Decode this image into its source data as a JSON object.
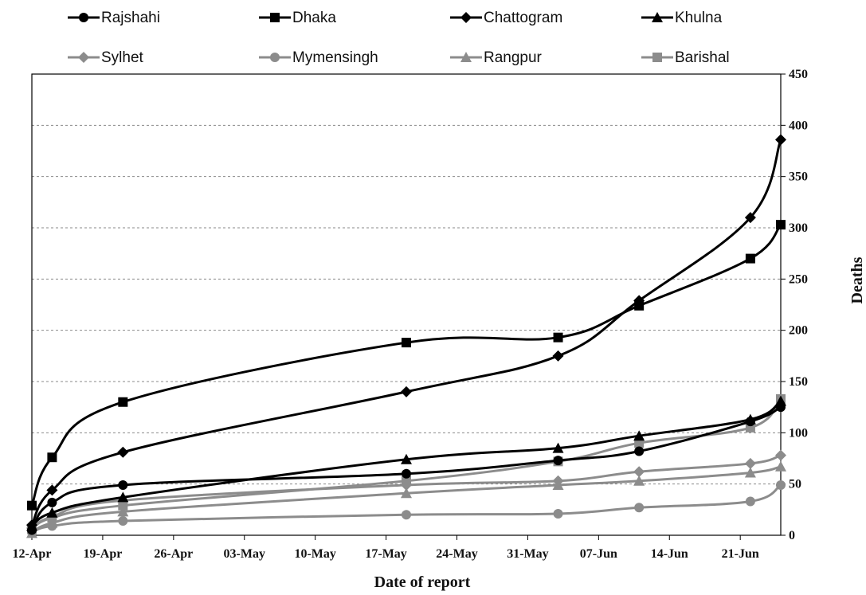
{
  "chart_data": {
    "type": "line",
    "xlabel": "Date of report",
    "ylabel": "Deaths",
    "ylim": [
      0,
      450
    ],
    "y_ticks": [
      "0",
      "50",
      "100",
      "150",
      "200",
      "250",
      "300",
      "350",
      "400",
      "450"
    ],
    "x_tick_labels": [
      "12-Apr",
      "19-Apr",
      "26-Apr",
      "03-May",
      "10-May",
      "17-May",
      "24-May",
      "31-May",
      "07-Jun",
      "14-Jun",
      "21-Jun"
    ],
    "x_range_days": [
      0,
      74
    ],
    "grid": "horizontal dashed",
    "legend_position": "top",
    "series": [
      {
        "name": "Rajshahi",
        "marker": "circle",
        "color": "#000000",
        "x": [
          0,
          2,
          9,
          37,
          52,
          60,
          71,
          74
        ],
        "y": [
          5,
          32,
          49,
          60,
          73,
          82,
          111,
          125
        ]
      },
      {
        "name": "Dhaka",
        "marker": "square",
        "color": "#000000",
        "x": [
          0,
          2,
          9,
          37,
          52,
          60,
          71,
          74
        ],
        "y": [
          29,
          76,
          130,
          188,
          193,
          224,
          270,
          303
        ]
      },
      {
        "name": "Chattogram",
        "marker": "diamond",
        "color": "#000000",
        "x": [
          0,
          2,
          9,
          37,
          52,
          60,
          71,
          74
        ],
        "y": [
          10,
          44,
          81,
          140,
          175,
          229,
          310,
          386
        ]
      },
      {
        "name": "Khulna",
        "marker": "triangle",
        "color": "#000000",
        "x": [
          0,
          2,
          9,
          37,
          52,
          60,
          71,
          74
        ],
        "y": [
          9,
          22,
          37,
          74,
          85,
          97,
          113,
          131
        ]
      },
      {
        "name": "Sylhet",
        "marker": "diamond",
        "color": "#8c8c8c",
        "x": [
          0,
          2,
          9,
          37,
          52,
          60,
          71,
          74
        ],
        "y": [
          7,
          18,
          34,
          49,
          53,
          62,
          70,
          78
        ]
      },
      {
        "name": "Mymensingh",
        "marker": "circle",
        "color": "#8c8c8c",
        "x": [
          0,
          2,
          9,
          37,
          52,
          60,
          71,
          74
        ],
        "y": [
          3,
          9,
          14,
          20,
          21,
          27,
          33,
          49
        ]
      },
      {
        "name": "Rangpur",
        "marker": "triangle",
        "color": "#8c8c8c",
        "x": [
          0,
          2,
          9,
          37,
          52,
          60,
          71,
          74
        ],
        "y": [
          2,
          12,
          23,
          41,
          49,
          53,
          61,
          67
        ]
      },
      {
        "name": "Barishal",
        "marker": "square",
        "color": "#8c8c8c",
        "x": [
          0,
          2,
          9,
          37,
          52,
          60,
          71,
          74
        ],
        "y": [
          6,
          17,
          29,
          53,
          72,
          90,
          105,
          133
        ]
      }
    ]
  }
}
